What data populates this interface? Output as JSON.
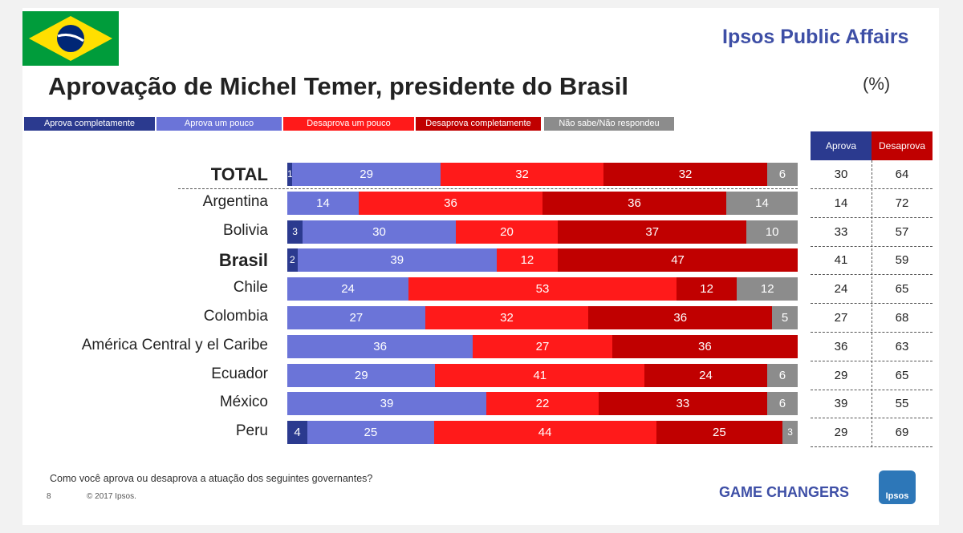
{
  "header": {
    "brand": "Ipsos Public Affairs",
    "title": "Aprovação de Michel Temer, presidente do Brasil",
    "unit": "(%)"
  },
  "colors": {
    "aprova_completamente": "#2b3a8f",
    "aprova_um_pouco": "#6b74d8",
    "desaprova_um_pouco": "#ff1a1a",
    "desaprova_completamente": "#c00000",
    "nao_sabe": "#8c8c8c"
  },
  "table": {
    "aprova_header": "Aprova",
    "desaprova_header": "Desaprova"
  },
  "footer": {
    "question": "Como você aprova ou desaprova a atuação dos seguintes governantes?",
    "page": "8",
    "copyright": "© 2017 Ipsos.",
    "tagline": "GAME CHANGERS",
    "logo_text": "Ipsos"
  },
  "chart_data": {
    "type": "bar",
    "orientation": "horizontal",
    "stacked": true,
    "title": "Aprovação de Michel Temer, presidente do Brasil",
    "unit": "%",
    "categories": [
      "TOTAL",
      "Argentina",
      "Bolivia",
      "Brasil",
      "Chile",
      "Colombia",
      "América Central y el Caribe",
      "Ecuador",
      "México",
      "Peru"
    ],
    "bold_categories": [
      "TOTAL",
      "Brasil"
    ],
    "series": [
      {
        "name": "Aprova completamente",
        "values": [
          1,
          0,
          3,
          2,
          0,
          0,
          0,
          0,
          0,
          4
        ]
      },
      {
        "name": "Aprova um pouco",
        "values": [
          29,
          14,
          30,
          39,
          24,
          27,
          36,
          29,
          39,
          25
        ]
      },
      {
        "name": "Desaprova um pouco",
        "values": [
          32,
          36,
          20,
          12,
          53,
          32,
          27,
          41,
          22,
          44
        ]
      },
      {
        "name": "Desaprova completamente",
        "values": [
          32,
          36,
          37,
          47,
          12,
          36,
          36,
          24,
          33,
          25
        ]
      },
      {
        "name": "Não sabe/Não respondeu",
        "values": [
          6,
          14,
          10,
          0,
          12,
          5,
          0,
          6,
          6,
          3
        ]
      }
    ],
    "aprova": [
      30,
      14,
      33,
      41,
      24,
      27,
      36,
      29,
      39,
      29
    ],
    "desaprova": [
      64,
      72,
      57,
      59,
      65,
      68,
      63,
      65,
      55,
      69
    ]
  }
}
